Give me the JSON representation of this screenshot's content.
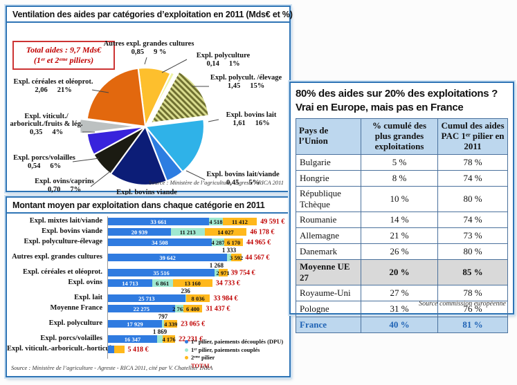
{
  "panels": {
    "pie": {
      "title": "Ventilation des aides par catégories d’exploitation en 2011 (Mds€ et %)",
      "total_box_line1": "Total aides : 9,7 Mds€",
      "total_box_line2": "(1ᵉʳ et 2ᵉᵐᵉ piliers)",
      "source": "Source : Ministère de l’agriculture - Agreste - RICA 2011"
    },
    "bars": {
      "title": "Montant moyen par exploitation dans chaque catégorie en 2011",
      "source": "Source : Ministère de l’agriculture - Agreste - RICA 2011, cité par V. Chatellier INRA"
    },
    "table": {
      "title_line1": "80% des aides sur 20% des exploitations ?",
      "title_line2": "Vrai en Europe, mais pas en France",
      "headers": [
        "Pays de l’Union",
        "% cumulé des plus grandes exploitations",
        "Cumul des aides PAC 1ᵉʳ pilier en 2011"
      ],
      "rows": [
        {
          "country": "Bulgarie",
          "pct": "5 %",
          "aides": "78 %",
          "style": ""
        },
        {
          "country": "Hongrie",
          "pct": "8 %",
          "aides": "74 %",
          "style": ""
        },
        {
          "country": "République Tchèque",
          "pct": "10 %",
          "aides": "80 %",
          "style": ""
        },
        {
          "country": "Roumanie",
          "pct": "14 %",
          "aides": "74 %",
          "style": ""
        },
        {
          "country": "Allemagne",
          "pct": "21 %",
          "aides": "73 %",
          "style": ""
        },
        {
          "country": "Danemark",
          "pct": "26 %",
          "aides": "80 %",
          "style": ""
        },
        {
          "country": "Moyenne UE 27",
          "pct": "20 %",
          "aides": "85 %",
          "style": "ue"
        },
        {
          "country": "Royaume-Uni",
          "pct": "27 %",
          "aides": "78 %",
          "style": ""
        },
        {
          "country": "Pologne",
          "pct": "31 %",
          "aides": "76 %",
          "style": ""
        },
        {
          "country": "France",
          "pct": "40 %",
          "aides": "81 %",
          "style": "france"
        }
      ],
      "source": "Source commission européenne"
    }
  },
  "chart_data": [
    {
      "type": "pie",
      "title": "Ventilation des aides par catégories d’exploitation en 2011 (Mds€ et %)",
      "total": "9,7 Mds€",
      "slices": [
        {
          "label": "Autres expl. grandes cultures",
          "value_mds": "0,85",
          "pct": 9,
          "pct_label": "9 %",
          "color": "#fdbf2d",
          "hatch": false,
          "explode": 0
        },
        {
          "label": "Expl. polyculture",
          "value_mds": "0,14",
          "pct": 1,
          "pct_label": "1%",
          "color": "#eef3a2",
          "hatch": false,
          "explode": 2
        },
        {
          "label": "Expl. polycult. /élevage",
          "value_mds": "1,45",
          "pct": 15,
          "pct_label": "15%",
          "color": "#9c9e4b",
          "hatch": true,
          "explode": 9
        },
        {
          "label": "Expl. bovins lait",
          "value_mds": "1,61",
          "pct": 16,
          "pct_label": "16%",
          "color": "#2fb2e8",
          "hatch": false,
          "explode": 0
        },
        {
          "label": "Expl. bovins lait/viande",
          "value_mds": "0,45",
          "pct": 5,
          "pct_label": "5%",
          "color": "#2d7de1",
          "hatch": false,
          "explode": 0
        },
        {
          "label": "Expl. bovins viande",
          "value_mds": "1,54",
          "pct": 16,
          "pct_label": "16%",
          "color": "#0c1d77",
          "hatch": false,
          "explode": 0
        },
        {
          "label": "Expl. ovins/caprins",
          "value_mds": "0,70",
          "pct": 7,
          "pct_label": "7%",
          "color": "#1b1b12",
          "hatch": false,
          "explode": 0
        },
        {
          "label": "Expl. porcs/volailles",
          "value_mds": "0,54",
          "pct": 6,
          "pct_label": "6%",
          "color": "#3823dc",
          "hatch": false,
          "explode": 0
        },
        {
          "label": "Expl. viticult./ arboricult./fruits & lég.",
          "value_mds": "0,35",
          "pct": 4,
          "pct_label": "4%",
          "color": "#bcc1c1",
          "hatch": false,
          "explode": 10
        },
        {
          "label": "Expl. céréales et oléoprot.",
          "value_mds": "2,06",
          "pct": 21,
          "pct_label": "21%",
          "color": "#e2680e",
          "hatch": false,
          "explode": 0
        }
      ]
    },
    {
      "type": "bar",
      "title": "Montant moyen par exploitation dans chaque catégorie en 2011",
      "unit": "€",
      "categories": [
        "Expl. mixtes lait/viande",
        "Expl. bovins viande",
        "Expl. polyculture-élevage",
        "Autres expl. grandes cultures",
        "Expl. céréales et oléoprot.",
        "Expl. ovins",
        "Expl. lait",
        "Moyenne France",
        "Expl. polyculture",
        "Expl. porcs/volailles",
        "Expl. viticult.-arboricult.-horticult."
      ],
      "series": [
        {
          "name": "1ᵉʳ pilier, paiements découplés (DPU)",
          "color": "#2f7be0",
          "values": [
            33661,
            20939,
            34508,
            39642,
            35516,
            14713,
            25713,
            22275,
            17929,
            16347,
            2000
          ],
          "labels": [
            "33 661",
            "20 939",
            "34 508",
            "39 642",
            "35 516",
            "14 713",
            "25 713",
            "22 275",
            "17 929",
            "16 347",
            null
          ]
        },
        {
          "name": "1ᵉʳ pilier, paiements couplés",
          "color": "#9fe8d0",
          "values": [
            4518,
            11213,
            4287,
            1333,
            1268,
            6861,
            236,
            2762,
            797,
            1869,
            0
          ],
          "labels": [
            "4 518",
            "11 213",
            "4 287",
            "1 333",
            "1 268",
            "6 861",
            "236",
            "2 762",
            "797",
            "1 869",
            null
          ],
          "label_above": [
            false,
            false,
            false,
            true,
            true,
            false,
            true,
            false,
            true,
            true,
            false
          ]
        },
        {
          "name": "2ᵉᵐᵉ pilier",
          "color": "#ffb81c",
          "values": [
            11412,
            14027,
            6170,
            3592,
            2971,
            13160,
            8036,
            6400,
            4339,
            4176,
            3418
          ],
          "labels": [
            "11 412",
            "14 027",
            "6 170",
            "3 592",
            "2 971",
            "13 160",
            "8 036",
            "6 400",
            "4 339",
            "4 176",
            null
          ]
        }
      ],
      "totals": [
        "49 591 €",
        "46 178 €",
        "44 965 €",
        "44 567 €",
        "39 754 €",
        "34 733 €",
        "33 984 €",
        "31 437 €",
        "23 065 €",
        "22 231 €",
        "5 418 €"
      ],
      "legend_total": "TOTAL"
    }
  ],
  "colors": {
    "panel_border": "#2e74b5",
    "panel_glow": "#cfe2f3",
    "total_red": "#c00000",
    "table_header_bg": "#bdd7ee",
    "ue_row_bg": "#d9d9d9",
    "france_row_bg": "#bdd7ee",
    "france_text": "#1f63b5"
  }
}
